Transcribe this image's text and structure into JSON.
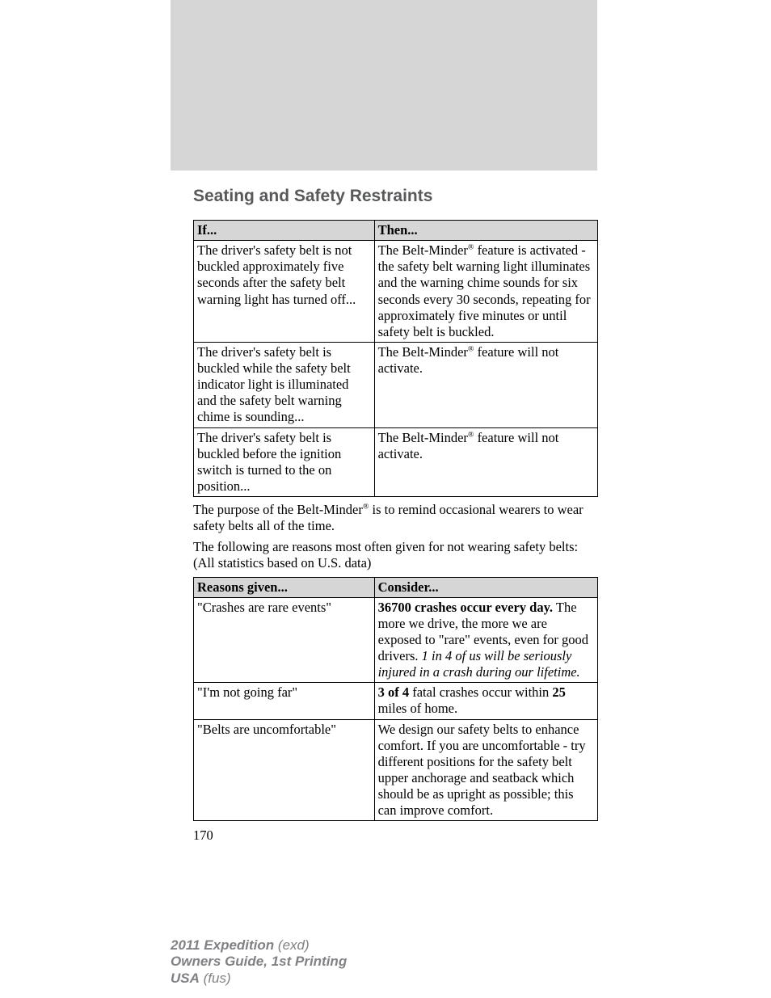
{
  "section_title": "Seating and Safety Restraints",
  "table1": {
    "headers": {
      "left": "If...",
      "right": "Then..."
    },
    "rows": [
      {
        "left": "The driver's safety belt is not buckled approximately five seconds after the safety belt warning light has turned off...",
        "right_html": "The Belt-Minder<sup class='reg'>®</sup> feature is activated - the safety belt warning light illuminates and the warning chime sounds for six seconds every 30 seconds, repeating for approximately five minutes or until safety belt is buckled."
      },
      {
        "left": "The driver's safety belt is buckled while the safety belt indicator light is illuminated and the safety belt warning chime is sounding...",
        "right_html": "The Belt-Minder<sup class='reg'>®</sup> feature will not activate."
      },
      {
        "left": "The driver's safety belt is buckled before the ignition switch is turned to the on position...",
        "right_html": "The Belt-Minder<sup class='reg'>®</sup> feature will not activate."
      }
    ]
  },
  "para1_html": "The purpose of the Belt-Minder<sup class='reg'>®</sup> is to remind occasional wearers to wear safety belts all of the time.",
  "para2": "The following are reasons most often given for not wearing safety belts: (All statistics based on U.S. data)",
  "table2": {
    "headers": {
      "left": "Reasons given...",
      "right": "Consider..."
    },
    "rows": [
      {
        "left": "\"Crashes are rare events\"",
        "right_html": "<span class='bold'>36700 crashes occur every day.</span> The more we drive, the more we are exposed to \"rare\" events, even for good drivers. <span class='ital'>1 in 4 of us will be seriously injured in a crash during our lifetime.</span>"
      },
      {
        "left": "\"I'm not going far\"",
        "right_html": "<span class='bold'>3 of 4</span> fatal crashes occur within <span class='bold'>25</span> miles of home."
      },
      {
        "left": "\"Belts are uncomfortable\"",
        "right_html": "We design our safety belts to enhance comfort. If you are uncomfortable - try different positions for the safety belt upper anchorage and seatback which should be as upright as possible; this can improve comfort."
      }
    ]
  },
  "page_number": "170",
  "footer": {
    "line1_bold": "2011 Expedition",
    "line1_rest": " (exd)",
    "line2": "Owners Guide, 1st Printing",
    "line3_bold": "USA",
    "line3_rest": " (fus)"
  },
  "colors": {
    "gray_box": "#d6d6d6",
    "title_color": "#58595b",
    "footer_color": "#808184",
    "text": "#000000",
    "background": "#ffffff"
  }
}
